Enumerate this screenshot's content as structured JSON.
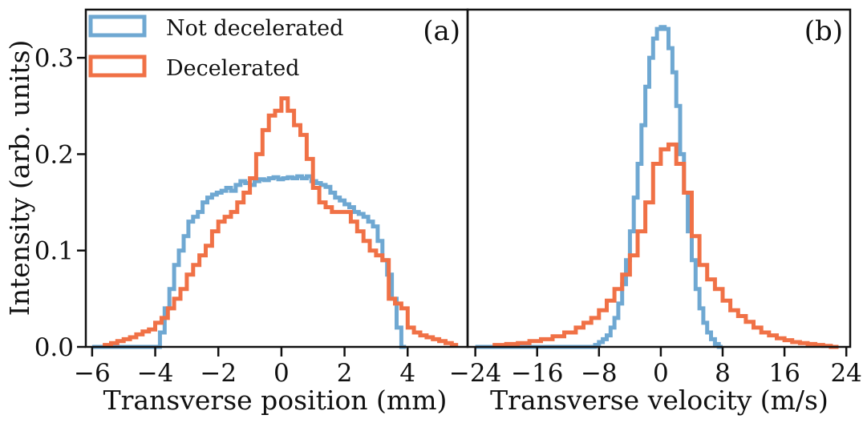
{
  "colors": {
    "not_decelerated": "#6fa8d2",
    "decelerated": "#f07146",
    "axes": "#111111"
  },
  "chart_data": [
    {
      "type": "step",
      "panel_label": "(a)",
      "xlabel": "Transverse position (mm)",
      "ylabel": "Intensity (arb. units)",
      "xlim": [
        -6.2,
        5.9
      ],
      "ylim": [
        0,
        0.35
      ],
      "xticks": [
        -6,
        -4,
        -2,
        0,
        2,
        4
      ],
      "xtick_labels": [
        "−6",
        "−4",
        "−2",
        "0",
        "2",
        "4"
      ],
      "yticks": [
        0.0,
        0.1,
        0.2,
        0.3
      ],
      "ytick_labels": [
        "0.0",
        "0.1",
        "0.2",
        "0.3"
      ],
      "legend": {
        "position": "top-left",
        "entries": [
          "Not decelerated",
          "Decelerated"
        ]
      },
      "series": [
        {
          "name": "Not decelerated",
          "color": "#6fa8d2",
          "x": [
            -6.0,
            -3.85,
            -3.7,
            -3.55,
            -3.4,
            -3.25,
            -3.1,
            -2.95,
            -2.8,
            -2.65,
            -2.5,
            -2.35,
            -2.2,
            -2.05,
            -1.9,
            -1.75,
            -1.6,
            -1.45,
            -1.3,
            -1.15,
            -1.0,
            -0.85,
            -0.7,
            -0.55,
            -0.4,
            -0.25,
            -0.1,
            0.05,
            0.2,
            0.35,
            0.5,
            0.65,
            0.8,
            0.95,
            1.1,
            1.25,
            1.4,
            1.55,
            1.7,
            1.85,
            2.0,
            2.15,
            2.3,
            2.45,
            2.6,
            2.75,
            2.9,
            3.05,
            3.2,
            3.35,
            3.5,
            3.65,
            3.8
          ],
          "y": [
            0.0,
            0.015,
            0.04,
            0.06,
            0.085,
            0.1,
            0.115,
            0.13,
            0.135,
            0.14,
            0.15,
            0.155,
            0.158,
            0.16,
            0.162,
            0.165,
            0.162,
            0.168,
            0.172,
            0.17,
            0.168,
            0.172,
            0.174,
            0.173,
            0.175,
            0.176,
            0.174,
            0.175,
            0.176,
            0.175,
            0.177,
            0.175,
            0.177,
            0.172,
            0.17,
            0.168,
            0.166,
            0.16,
            0.155,
            0.152,
            0.148,
            0.145,
            0.14,
            0.138,
            0.135,
            0.13,
            0.125,
            0.11,
            0.09,
            0.075,
            0.05,
            0.02,
            0.0
          ]
        },
        {
          "name": "Decelerated",
          "color": "#f07146",
          "x": [
            -5.6,
            -5.4,
            -5.2,
            -5.0,
            -4.8,
            -4.6,
            -4.4,
            -4.2,
            -4.0,
            -3.8,
            -3.6,
            -3.4,
            -3.2,
            -3.0,
            -2.8,
            -2.6,
            -2.4,
            -2.2,
            -2.0,
            -1.8,
            -1.6,
            -1.4,
            -1.2,
            -1.0,
            -0.8,
            -0.6,
            -0.4,
            -0.2,
            0.0,
            0.2,
            0.4,
            0.6,
            0.8,
            1.0,
            1.2,
            1.4,
            1.6,
            1.8,
            2.0,
            2.2,
            2.4,
            2.6,
            2.8,
            3.0,
            3.2,
            3.4,
            3.6,
            3.8,
            4.0,
            4.2,
            4.4,
            4.6,
            4.8,
            5.0,
            5.2,
            5.4
          ],
          "y": [
            0.002,
            0.004,
            0.006,
            0.008,
            0.01,
            0.013,
            0.016,
            0.018,
            0.025,
            0.03,
            0.04,
            0.05,
            0.06,
            0.075,
            0.085,
            0.095,
            0.105,
            0.12,
            0.13,
            0.135,
            0.14,
            0.15,
            0.16,
            0.175,
            0.2,
            0.225,
            0.24,
            0.245,
            0.258,
            0.245,
            0.23,
            0.22,
            0.195,
            0.165,
            0.15,
            0.145,
            0.14,
            0.14,
            0.14,
            0.13,
            0.12,
            0.11,
            0.1,
            0.095,
            0.09,
            0.05,
            0.045,
            0.04,
            0.02,
            0.015,
            0.012,
            0.01,
            0.008,
            0.006,
            0.004,
            0.002
          ]
        }
      ]
    },
    {
      "type": "step",
      "panel_label": "(b)",
      "xlabel": "Transverse velocity (m/s)",
      "xlim": [
        -25,
        24.5
      ],
      "ylim": [
        0,
        0.35
      ],
      "xticks": [
        -24,
        -16,
        -8,
        0,
        8,
        16,
        24
      ],
      "xtick_labels": [
        "−24",
        "−16",
        "−8",
        "0",
        "8",
        "16",
        "24"
      ],
      "series": [
        {
          "name": "Not decelerated",
          "color": "#6fa8d2",
          "x": [
            -24.0,
            -9.0,
            -8.5,
            -8.0,
            -7.5,
            -7.0,
            -6.5,
            -6.0,
            -5.5,
            -5.0,
            -4.5,
            -4.0,
            -3.5,
            -3.0,
            -2.5,
            -2.0,
            -1.5,
            -1.0,
            -0.5,
            0.0,
            0.5,
            1.0,
            1.5,
            2.0,
            2.5,
            3.0,
            3.5,
            4.0,
            4.5,
            5.0,
            5.5,
            6.0,
            6.5,
            7.0,
            7.5
          ],
          "y": [
            0.0,
            0.0,
            0.002,
            0.005,
            0.008,
            0.012,
            0.02,
            0.03,
            0.045,
            0.065,
            0.09,
            0.12,
            0.155,
            0.19,
            0.23,
            0.27,
            0.3,
            0.32,
            0.33,
            0.332,
            0.33,
            0.31,
            0.285,
            0.25,
            0.2,
            0.16,
            0.12,
            0.09,
            0.06,
            0.04,
            0.025,
            0.015,
            0.008,
            0.003,
            0.0
          ]
        },
        {
          "name": "Decelerated",
          "color": "#f07146",
          "x": [
            -21.5,
            -20.0,
            -18.5,
            -17.0,
            -15.5,
            -14.0,
            -12.5,
            -11.0,
            -10.0,
            -9.0,
            -8.0,
            -7.0,
            -6.0,
            -5.0,
            -4.0,
            -3.0,
            -2.0,
            -1.0,
            0.0,
            1.0,
            2.0,
            3.0,
            4.0,
            5.0,
            6.0,
            7.0,
            8.0,
            9.0,
            10.0,
            11.0,
            12.0,
            13.0,
            14.0,
            15.0,
            16.0,
            17.0,
            18.0,
            19.0,
            20.0,
            21.0,
            22.0
          ],
          "y": [
            0.002,
            0.003,
            0.004,
            0.006,
            0.008,
            0.011,
            0.015,
            0.02,
            0.025,
            0.03,
            0.038,
            0.048,
            0.06,
            0.075,
            0.095,
            0.12,
            0.15,
            0.19,
            0.205,
            0.21,
            0.19,
            0.16,
            0.115,
            0.085,
            0.07,
            0.06,
            0.048,
            0.038,
            0.032,
            0.026,
            0.02,
            0.015,
            0.012,
            0.009,
            0.007,
            0.005,
            0.004,
            0.003,
            0.002,
            0.001,
            0.0
          ]
        }
      ]
    }
  ]
}
